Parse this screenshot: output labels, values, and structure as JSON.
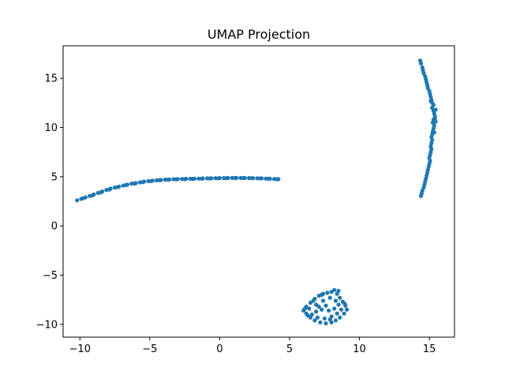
{
  "chart_data": {
    "type": "scatter",
    "title": "UMAP Projection",
    "xlabel": "",
    "ylabel": "",
    "xlim": [
      -11.2,
      16.8
    ],
    "ylim": [
      -11.3,
      18.3
    ],
    "x_ticks": [
      -10,
      -5,
      0,
      5,
      10,
      15
    ],
    "y_ticks": [
      -10,
      -5,
      0,
      5,
      10,
      15
    ],
    "x_tick_labels": [
      "−10",
      "−5",
      "0",
      "5",
      "10",
      "15"
    ],
    "y_tick_labels": [
      "−10",
      "−5",
      "0",
      "5",
      "10",
      "15"
    ],
    "grid": false,
    "marker_color": "#1f77b4",
    "series": [
      {
        "points": [
          [
            -10.2,
            2.6
          ],
          [
            -9.9,
            2.75
          ],
          [
            -9.6,
            2.9
          ],
          [
            -9.3,
            3.05
          ],
          [
            -9.0,
            3.2
          ],
          [
            -8.7,
            3.35
          ],
          [
            -8.4,
            3.5
          ],
          [
            -8.1,
            3.65
          ],
          [
            -7.8,
            3.8
          ],
          [
            -7.5,
            3.9
          ],
          [
            -7.2,
            4.0
          ],
          [
            -6.9,
            4.1
          ],
          [
            -6.6,
            4.2
          ],
          [
            -6.3,
            4.3
          ],
          [
            -6.0,
            4.35
          ],
          [
            -5.7,
            4.42
          ],
          [
            -5.4,
            4.5
          ],
          [
            -5.1,
            4.55
          ],
          [
            -4.8,
            4.6
          ],
          [
            -4.5,
            4.63
          ],
          [
            -4.2,
            4.66
          ],
          [
            -3.9,
            4.7
          ],
          [
            -3.6,
            4.72
          ],
          [
            -3.3,
            4.74
          ],
          [
            -3.0,
            4.76
          ],
          [
            -2.7,
            4.77
          ],
          [
            -2.4,
            4.78
          ],
          [
            -2.1,
            4.79
          ],
          [
            -1.8,
            4.8
          ],
          [
            -1.5,
            4.81
          ],
          [
            -1.2,
            4.82
          ],
          [
            -0.9,
            4.83
          ],
          [
            -0.6,
            4.84
          ],
          [
            -0.3,
            4.85
          ],
          [
            0.0,
            4.86
          ],
          [
            0.3,
            4.86
          ],
          [
            0.6,
            4.87
          ],
          [
            0.9,
            4.87
          ],
          [
            1.2,
            4.87
          ],
          [
            1.5,
            4.87
          ],
          [
            1.8,
            4.87
          ],
          [
            2.1,
            4.86
          ],
          [
            2.4,
            4.85
          ],
          [
            2.7,
            4.84
          ],
          [
            3.0,
            4.83
          ],
          [
            3.3,
            4.81
          ],
          [
            3.6,
            4.79
          ],
          [
            3.9,
            4.77
          ],
          [
            4.2,
            4.74
          ],
          [
            -9.8,
            2.8
          ],
          [
            -9.1,
            3.1
          ],
          [
            -8.5,
            3.4
          ],
          [
            -7.9,
            3.7
          ],
          [
            -7.3,
            3.95
          ],
          [
            -6.7,
            4.15
          ],
          [
            -6.1,
            4.3
          ],
          [
            -5.5,
            4.45
          ],
          [
            -4.9,
            4.55
          ],
          [
            -4.3,
            4.65
          ],
          [
            -3.7,
            4.7
          ],
          [
            -3.1,
            4.73
          ],
          [
            -2.5,
            4.75
          ],
          [
            -1.9,
            4.78
          ],
          [
            -1.3,
            4.8
          ],
          [
            -0.7,
            4.82
          ],
          [
            -0.1,
            4.84
          ],
          [
            0.5,
            4.85
          ],
          [
            1.1,
            4.86
          ],
          [
            1.7,
            4.86
          ],
          [
            2.3,
            4.85
          ],
          [
            2.9,
            4.84
          ],
          [
            3.5,
            4.8
          ],
          [
            4.1,
            4.76
          ]
        ]
      },
      {
        "points": [
          [
            14.35,
            16.8
          ],
          [
            14.4,
            16.5
          ],
          [
            14.5,
            16.1
          ],
          [
            14.55,
            15.8
          ],
          [
            14.6,
            15.5
          ],
          [
            14.7,
            15.2
          ],
          [
            14.75,
            14.9
          ],
          [
            14.8,
            14.6
          ],
          [
            14.85,
            14.3
          ],
          [
            14.9,
            14.0
          ],
          [
            15.0,
            13.7
          ],
          [
            15.05,
            13.4
          ],
          [
            15.1,
            13.1
          ],
          [
            15.15,
            12.8
          ],
          [
            15.2,
            12.5
          ],
          [
            15.3,
            12.3
          ],
          [
            15.2,
            12.0
          ],
          [
            15.3,
            11.7
          ],
          [
            15.35,
            11.4
          ],
          [
            15.4,
            11.1
          ],
          [
            15.3,
            10.8
          ],
          [
            15.25,
            10.5
          ],
          [
            15.35,
            10.2
          ],
          [
            15.3,
            9.9
          ],
          [
            15.25,
            9.6
          ],
          [
            15.2,
            9.3
          ],
          [
            15.15,
            9.0
          ],
          [
            15.2,
            8.7
          ],
          [
            15.15,
            8.4
          ],
          [
            15.1,
            8.1
          ],
          [
            15.15,
            7.8
          ],
          [
            15.1,
            7.5
          ],
          [
            15.05,
            7.2
          ],
          [
            15.0,
            6.9
          ],
          [
            15.05,
            6.6
          ],
          [
            15.0,
            6.3
          ],
          [
            14.95,
            6.0
          ],
          [
            14.9,
            5.7
          ],
          [
            14.85,
            5.4
          ],
          [
            14.8,
            5.1
          ],
          [
            14.75,
            4.8
          ],
          [
            14.7,
            4.5
          ],
          [
            14.65,
            4.2
          ],
          [
            14.6,
            3.9
          ],
          [
            14.5,
            3.6
          ],
          [
            14.45,
            3.3
          ],
          [
            14.4,
            3.05
          ],
          [
            15.45,
            11.8
          ],
          [
            15.4,
            10.9
          ],
          [
            15.45,
            10.6
          ],
          [
            15.1,
            12.7
          ],
          [
            15.35,
            9.5
          ]
        ]
      },
      {
        "points": [
          [
            6.2,
            -8.2
          ],
          [
            6.5,
            -7.8
          ],
          [
            6.8,
            -7.4
          ],
          [
            7.1,
            -7.1
          ],
          [
            7.4,
            -6.9
          ],
          [
            7.7,
            -6.8
          ],
          [
            8.0,
            -6.7
          ],
          [
            8.2,
            -6.5
          ],
          [
            8.4,
            -6.9
          ],
          [
            8.6,
            -7.3
          ],
          [
            8.8,
            -7.7
          ],
          [
            9.0,
            -8.1
          ],
          [
            9.1,
            -8.5
          ],
          [
            8.9,
            -8.9
          ],
          [
            8.6,
            -9.3
          ],
          [
            8.3,
            -9.6
          ],
          [
            8.0,
            -9.8
          ],
          [
            7.6,
            -9.9
          ],
          [
            7.2,
            -9.8
          ],
          [
            6.8,
            -9.6
          ],
          [
            6.5,
            -9.3
          ],
          [
            6.2,
            -8.9
          ],
          [
            6.0,
            -8.6
          ],
          [
            6.4,
            -8.4
          ],
          [
            6.9,
            -8.0
          ],
          [
            7.4,
            -7.6
          ],
          [
            7.9,
            -7.3
          ],
          [
            8.3,
            -7.6
          ],
          [
            8.5,
            -8.0
          ],
          [
            8.2,
            -8.4
          ],
          [
            7.8,
            -8.6
          ],
          [
            7.3,
            -8.5
          ],
          [
            6.9,
            -8.7
          ],
          [
            6.6,
            -9.0
          ],
          [
            7.0,
            -9.3
          ],
          [
            7.5,
            -9.4
          ],
          [
            8.0,
            -9.2
          ],
          [
            8.4,
            -8.9
          ],
          [
            8.7,
            -8.5
          ],
          [
            7.6,
            -8.1
          ],
          [
            7.1,
            -8.2
          ],
          [
            6.7,
            -7.6
          ],
          [
            7.3,
            -7.0
          ],
          [
            8.5,
            -6.6
          ],
          [
            8.95,
            -7.9
          ],
          [
            6.3,
            -9.1
          ],
          [
            7.9,
            -9.5
          ],
          [
            6.1,
            -8.4
          ]
        ]
      }
    ]
  }
}
